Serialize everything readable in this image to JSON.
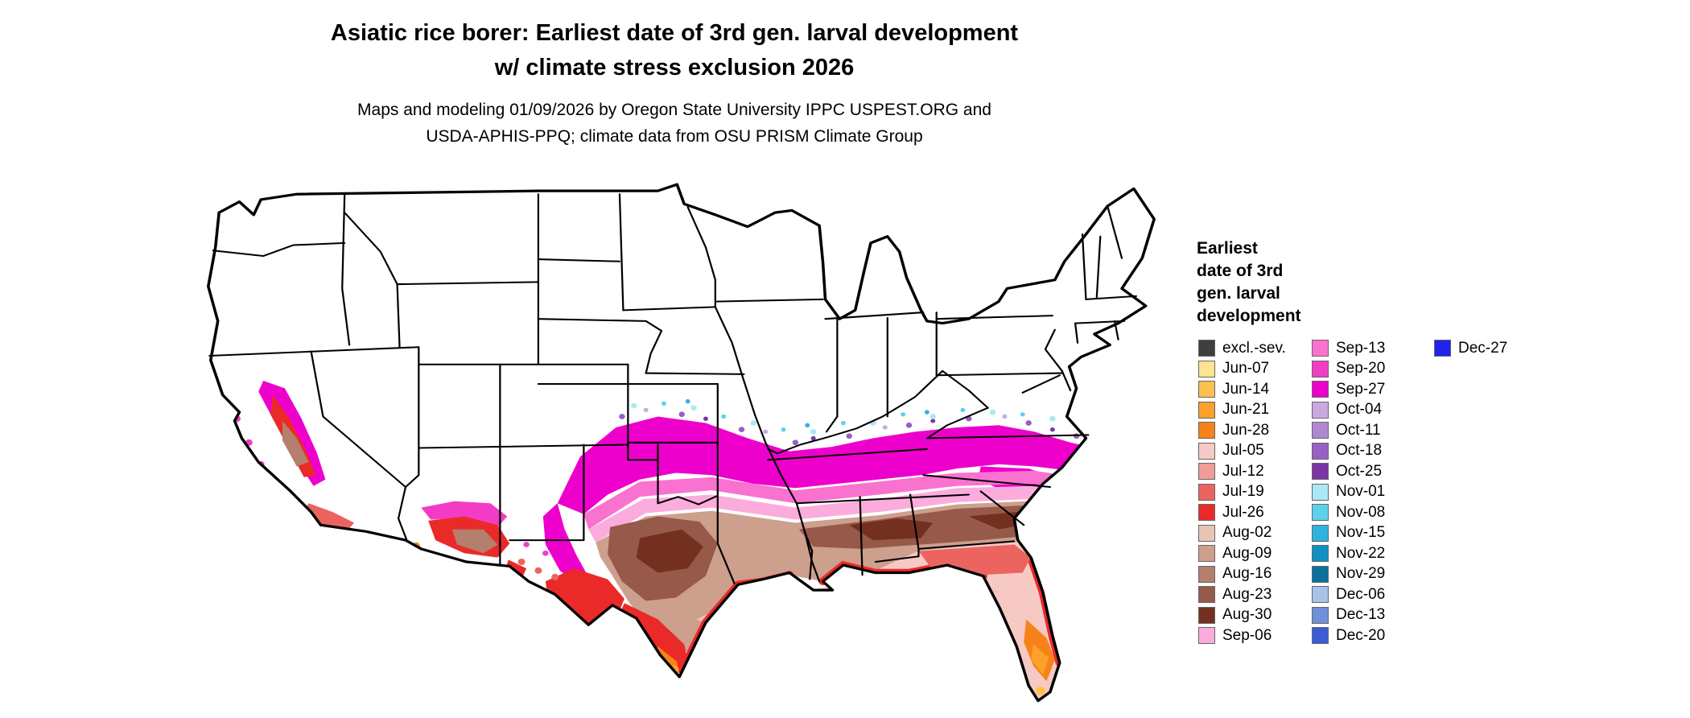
{
  "title": {
    "line1": "Asiatic rice borer: Earliest date of 3rd gen. larval development",
    "line2": "w/ climate stress exclusion 2026"
  },
  "subtitle": {
    "line1": "Maps and modeling 01/09/2026 by Oregon State University IPPC USPEST.ORG and",
    "line2": "USDA-APHIS-PPQ; climate data from OSU PRISM Climate Group"
  },
  "legend": {
    "title_lines": [
      "Earliest",
      "date of 3rd",
      "gen. larval",
      "development"
    ],
    "columns": [
      {
        "items": [
          {
            "label": "excl.-sev.",
            "color": "#3f3f3f"
          },
          {
            "label": "Jun-07",
            "color": "#fee391"
          },
          {
            "label": "Jun-14",
            "color": "#fdc04f"
          },
          {
            "label": "Jun-21",
            "color": "#fda02c"
          },
          {
            "label": "Jun-28",
            "color": "#f8821a"
          },
          {
            "label": "Jul-05",
            "color": "#f6c9c4"
          },
          {
            "label": "Jul-12",
            "color": "#f09c98"
          },
          {
            "label": "Jul-19",
            "color": "#ec6460"
          },
          {
            "label": "Jul-26",
            "color": "#ea2a28"
          },
          {
            "label": "Aug-02",
            "color": "#e8c4b4"
          },
          {
            "label": "Aug-09",
            "color": "#cd9f8d"
          },
          {
            "label": "Aug-16",
            "color": "#b47f6c"
          },
          {
            "label": "Aug-23",
            "color": "#96594a"
          },
          {
            "label": "Aug-30",
            "color": "#74301f"
          },
          {
            "label": "Sep-06",
            "color": "#fbacdc"
          }
        ]
      },
      {
        "items": [
          {
            "label": "Sep-13",
            "color": "#f972d0"
          },
          {
            "label": "Sep-20",
            "color": "#f33cc6"
          },
          {
            "label": "Sep-27",
            "color": "#ee00cc"
          },
          {
            "label": "Oct-04",
            "color": "#c9aade"
          },
          {
            "label": "Oct-11",
            "color": "#b088d2"
          },
          {
            "label": "Oct-18",
            "color": "#985fc4"
          },
          {
            "label": "Oct-25",
            "color": "#7a34a6"
          },
          {
            "label": "Nov-01",
            "color": "#abe8f6"
          },
          {
            "label": "Nov-08",
            "color": "#5ed2ec"
          },
          {
            "label": "Nov-15",
            "color": "#2eb4dc"
          },
          {
            "label": "Nov-22",
            "color": "#1090c2"
          },
          {
            "label": "Nov-29",
            "color": "#0c6f9c"
          },
          {
            "label": "Dec-06",
            "color": "#a9c2e8"
          },
          {
            "label": "Dec-13",
            "color": "#6e90d8"
          },
          {
            "label": "Dec-20",
            "color": "#3c5cd6"
          }
        ]
      },
      {
        "items": [
          {
            "label": "Dec-27",
            "color": "#2121ec"
          }
        ]
      }
    ]
  }
}
